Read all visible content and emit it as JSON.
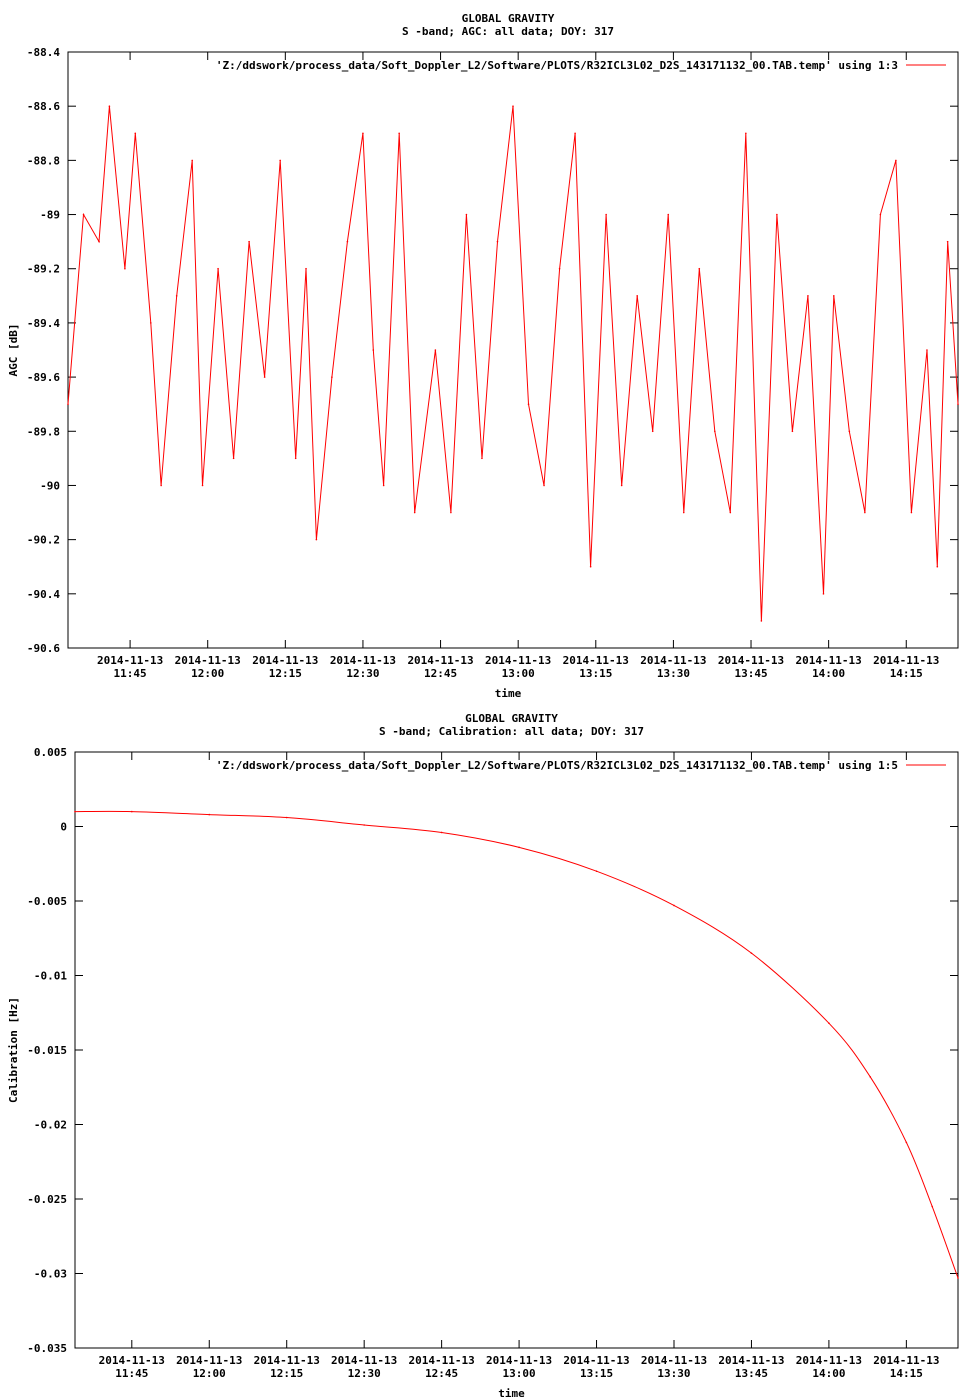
{
  "chart_data": [
    {
      "type": "line",
      "title": "GLOBAL GRAVITY",
      "subtitle": "S -band; AGC: all data; DOY: 317",
      "xlabel": "time",
      "ylabel": "AGC [dB]",
      "ylim": [
        -90.6,
        -88.4
      ],
      "y_ticks": [
        "-88.4",
        "-88.6",
        "-88.8",
        "-89",
        "-89.2",
        "-89.4",
        "-89.6",
        "-89.8",
        "-90",
        "-90.2",
        "-90.4",
        "-90.6"
      ],
      "y_tick_values": [
        -88.4,
        -88.6,
        -88.8,
        -89.0,
        -89.2,
        -89.4,
        -89.6,
        -89.8,
        -90.0,
        -90.2,
        -90.4,
        -90.6
      ],
      "x_range": [
        "2014-11-13 11:33",
        "2014-11-13 14:25"
      ],
      "x_ticks": [
        {
          "date": "2014-11-13",
          "time": "11:45",
          "value": "2014-11-13 11:45"
        },
        {
          "date": "2014-11-13",
          "time": "12:00",
          "value": "2014-11-13 12:00"
        },
        {
          "date": "2014-11-13",
          "time": "12:15",
          "value": "2014-11-13 12:15"
        },
        {
          "date": "2014-11-13",
          "time": "12:30",
          "value": "2014-11-13 12:30"
        },
        {
          "date": "2014-11-13",
          "time": "12:45",
          "value": "2014-11-13 12:45"
        },
        {
          "date": "2014-11-13",
          "time": "13:00",
          "value": "2014-11-13 13:00"
        },
        {
          "date": "2014-11-13",
          "time": "13:15",
          "value": "2014-11-13 13:15"
        },
        {
          "date": "2014-11-13",
          "time": "13:30",
          "value": "2014-11-13 13:30"
        },
        {
          "date": "2014-11-13",
          "time": "13:45",
          "value": "2014-11-13 13:45"
        },
        {
          "date": "2014-11-13",
          "time": "14:00",
          "value": "2014-11-13 14:00"
        },
        {
          "date": "2014-11-13",
          "time": "14:15",
          "value": "2014-11-13 14:15"
        }
      ],
      "legend_position": "top-right",
      "series": [
        {
          "name": "'Z:/ddswork/process_data/Soft_Doppler_L2/Software/PLOTS/R32ICL3L02_D2S_143171132_00.TAB.temp' using 1:3",
          "color": "#ff0000",
          "points": [
            [
              "2014-11-13 11:33",
              -89.7
            ],
            [
              "2014-11-13 11:36",
              -89.0
            ],
            [
              "2014-11-13 11:39",
              -89.1
            ],
            [
              "2014-11-13 11:41",
              -88.6
            ],
            [
              "2014-11-13 11:44",
              -89.2
            ],
            [
              "2014-11-13 11:46",
              -88.7
            ],
            [
              "2014-11-13 11:49",
              -89.4
            ],
            [
              "2014-11-13 11:51",
              -90.0
            ],
            [
              "2014-11-13 11:54",
              -89.3
            ],
            [
              "2014-11-13 11:57",
              -88.8
            ],
            [
              "2014-11-13 11:59",
              -90.0
            ],
            [
              "2014-11-13 12:02",
              -89.2
            ],
            [
              "2014-11-13 12:05",
              -89.9
            ],
            [
              "2014-11-13 12:08",
              -89.1
            ],
            [
              "2014-11-13 12:11",
              -89.6
            ],
            [
              "2014-11-13 12:14",
              -88.8
            ],
            [
              "2014-11-13 12:17",
              -89.9
            ],
            [
              "2014-11-13 12:19",
              -89.2
            ],
            [
              "2014-11-13 12:21",
              -90.2
            ],
            [
              "2014-11-13 12:24",
              -89.6
            ],
            [
              "2014-11-13 12:27",
              -89.1
            ],
            [
              "2014-11-13 12:30",
              -88.7
            ],
            [
              "2014-11-13 12:32",
              -89.5
            ],
            [
              "2014-11-13 12:34",
              -90.0
            ],
            [
              "2014-11-13 12:37",
              -88.7
            ],
            [
              "2014-11-13 12:40",
              -90.1
            ],
            [
              "2014-11-13 12:44",
              -89.5
            ],
            [
              "2014-11-13 12:47",
              -90.1
            ],
            [
              "2014-11-13 12:50",
              -89.0
            ],
            [
              "2014-11-13 12:53",
              -89.9
            ],
            [
              "2014-11-13 12:56",
              -89.1
            ],
            [
              "2014-11-13 12:59",
              -88.6
            ],
            [
              "2014-11-13 13:02",
              -89.7
            ],
            [
              "2014-11-13 13:05",
              -90.0
            ],
            [
              "2014-11-13 13:08",
              -89.2
            ],
            [
              "2014-11-13 13:11",
              -88.7
            ],
            [
              "2014-11-13 13:14",
              -90.3
            ],
            [
              "2014-11-13 13:17",
              -89.0
            ],
            [
              "2014-11-13 13:20",
              -90.0
            ],
            [
              "2014-11-13 13:23",
              -89.3
            ],
            [
              "2014-11-13 13:26",
              -89.8
            ],
            [
              "2014-11-13 13:29",
              -89.0
            ],
            [
              "2014-11-13 13:32",
              -90.1
            ],
            [
              "2014-11-13 13:35",
              -89.2
            ],
            [
              "2014-11-13 13:38",
              -89.8
            ],
            [
              "2014-11-13 13:41",
              -90.1
            ],
            [
              "2014-11-13 13:44",
              -88.7
            ],
            [
              "2014-11-13 13:47",
              -90.5
            ],
            [
              "2014-11-13 13:50",
              -89.0
            ],
            [
              "2014-11-13 13:53",
              -89.8
            ],
            [
              "2014-11-13 13:56",
              -89.3
            ],
            [
              "2014-11-13 13:59",
              -90.4
            ],
            [
              "2014-11-13 14:01",
              -89.3
            ],
            [
              "2014-11-13 14:04",
              -89.8
            ],
            [
              "2014-11-13 14:07",
              -90.1
            ],
            [
              "2014-11-13 14:10",
              -89.0
            ],
            [
              "2014-11-13 14:13",
              -88.8
            ],
            [
              "2014-11-13 14:16",
              -90.1
            ],
            [
              "2014-11-13 14:19",
              -89.5
            ],
            [
              "2014-11-13 14:21",
              -90.3
            ],
            [
              "2014-11-13 14:23",
              -89.1
            ],
            [
              "2014-11-13 14:25",
              -89.7
            ]
          ]
        }
      ]
    },
    {
      "type": "line",
      "title": "GLOBAL GRAVITY",
      "subtitle": "S -band; Calibration: all data; DOY: 317",
      "xlabel": "time",
      "ylabel": "Calibration [Hz]",
      "ylim": [
        -0.035,
        0.005
      ],
      "y_ticks": [
        "0.005",
        "0",
        "-0.005",
        "-0.01",
        "-0.015",
        "-0.02",
        "-0.025",
        "-0.03",
        "-0.035"
      ],
      "y_tick_values": [
        0.005,
        0,
        -0.005,
        -0.01,
        -0.015,
        -0.02,
        -0.025,
        -0.03,
        -0.035
      ],
      "x_range": [
        "2014-11-13 11:34",
        "2014-11-13 14:25"
      ],
      "x_ticks": [
        {
          "date": "2014-11-13",
          "time": "11:45",
          "value": "2014-11-13 11:45"
        },
        {
          "date": "2014-11-13",
          "time": "12:00",
          "value": "2014-11-13 12:00"
        },
        {
          "date": "2014-11-13",
          "time": "12:15",
          "value": "2014-11-13 12:15"
        },
        {
          "date": "2014-11-13",
          "time": "12:30",
          "value": "2014-11-13 12:30"
        },
        {
          "date": "2014-11-13",
          "time": "12:45",
          "value": "2014-11-13 12:45"
        },
        {
          "date": "2014-11-13",
          "time": "13:00",
          "value": "2014-11-13 13:00"
        },
        {
          "date": "2014-11-13",
          "time": "13:15",
          "value": "2014-11-13 13:15"
        },
        {
          "date": "2014-11-13",
          "time": "13:30",
          "value": "2014-11-13 13:30"
        },
        {
          "date": "2014-11-13",
          "time": "13:45",
          "value": "2014-11-13 13:45"
        },
        {
          "date": "2014-11-13",
          "time": "14:00",
          "value": "2014-11-13 14:00"
        },
        {
          "date": "2014-11-13",
          "time": "14:15",
          "value": "2014-11-13 14:15"
        }
      ],
      "legend_position": "top-right",
      "series": [
        {
          "name": "'Z:/ddswork/process_data/Soft_Doppler_L2/Software/PLOTS/R32ICL3L02_D2S_143171132_00.TAB.temp' using 1:5",
          "color": "#ff0000",
          "points": [
            [
              "2014-11-13 11:34",
              0.001
            ],
            [
              "2014-11-13 11:45",
              0.001
            ],
            [
              "2014-11-13 12:00",
              0.0008
            ],
            [
              "2014-11-13 12:15",
              0.0006
            ],
            [
              "2014-11-13 12:30",
              0.0001
            ],
            [
              "2014-11-13 12:45",
              -0.0004
            ],
            [
              "2014-11-13 13:00",
              -0.0014
            ],
            [
              "2014-11-13 13:15",
              -0.003
            ],
            [
              "2014-11-13 13:30",
              -0.0053
            ],
            [
              "2014-11-13 13:45",
              -0.0085
            ],
            [
              "2014-11-13 14:00",
              -0.0132
            ],
            [
              "2014-11-13 14:08",
              -0.0168
            ],
            [
              "2014-11-13 14:15",
              -0.0212
            ],
            [
              "2014-11-13 14:20",
              -0.0255
            ],
            [
              "2014-11-13 14:25",
              -0.0303
            ]
          ]
        }
      ]
    }
  ]
}
